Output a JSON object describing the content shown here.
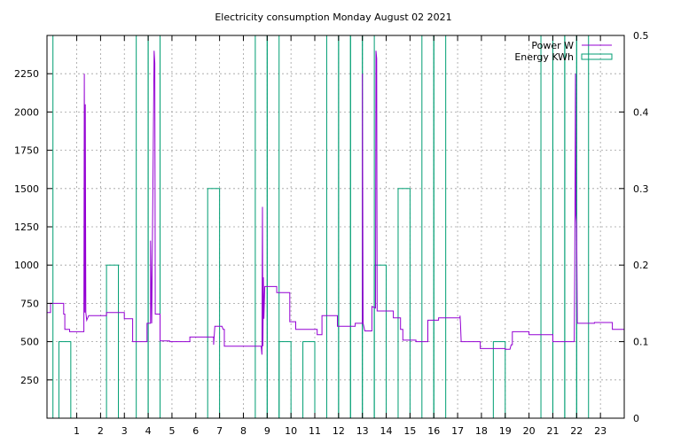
{
  "chart_data": {
    "type": "line",
    "title": "Electricity consumption Monday August 02 2021",
    "xlabel": "",
    "ylabel": "",
    "y2label": "",
    "xlim": [
      -0.25,
      24
    ],
    "ylim": [
      0,
      2500
    ],
    "y2lim": [
      0,
      0.5
    ],
    "x_ticks": [
      1,
      2,
      3,
      4,
      5,
      6,
      7,
      8,
      9,
      10,
      11,
      12,
      13,
      14,
      15,
      16,
      17,
      18,
      19,
      20,
      21,
      22,
      23
    ],
    "y_ticks": [
      250,
      500,
      750,
      1000,
      1250,
      1500,
      1750,
      2000,
      2250
    ],
    "y2_ticks": [
      0,
      0.1,
      0.2,
      0.3,
      0.4,
      0.5
    ],
    "grid": true,
    "legend_position": "top-right",
    "series": [
      {
        "name": "Power W",
        "axis": "y",
        "color": "#9400d3",
        "style": "step",
        "points": [
          [
            -0.25,
            690
          ],
          [
            -0.1,
            690
          ],
          [
            -0.1,
            750
          ],
          [
            0.45,
            750
          ],
          [
            0.45,
            680
          ],
          [
            0.5,
            680
          ],
          [
            0.5,
            580
          ],
          [
            0.7,
            580
          ],
          [
            0.7,
            565
          ],
          [
            1.3,
            565
          ],
          [
            1.3,
            690
          ],
          [
            1.32,
            2250
          ],
          [
            1.34,
            690
          ],
          [
            1.36,
            2050
          ],
          [
            1.38,
            690
          ],
          [
            1.42,
            640
          ],
          [
            1.5,
            670
          ],
          [
            2.25,
            670
          ],
          [
            2.25,
            690
          ],
          [
            3.0,
            690
          ],
          [
            3.0,
            650
          ],
          [
            3.35,
            650
          ],
          [
            3.35,
            500
          ],
          [
            3.95,
            500
          ],
          [
            3.95,
            620
          ],
          [
            4.1,
            620
          ],
          [
            4.1,
            1160
          ],
          [
            4.15,
            620
          ],
          [
            4.25,
            2400
          ],
          [
            4.28,
            2320
          ],
          [
            4.3,
            680
          ],
          [
            4.5,
            680
          ],
          [
            4.5,
            505
          ],
          [
            4.9,
            505
          ],
          [
            4.9,
            500
          ],
          [
            5.75,
            500
          ],
          [
            5.75,
            530
          ],
          [
            6.75,
            530
          ],
          [
            6.75,
            480
          ],
          [
            6.8,
            600
          ],
          [
            7.1,
            600
          ],
          [
            7.15,
            580
          ],
          [
            7.2,
            580
          ],
          [
            7.2,
            470
          ],
          [
            8.75,
            470
          ],
          [
            8.78,
            415
          ],
          [
            8.8,
            1380
          ],
          [
            8.82,
            470
          ],
          [
            8.84,
            920
          ],
          [
            8.86,
            650
          ],
          [
            8.9,
            860
          ],
          [
            9.4,
            860
          ],
          [
            9.4,
            820
          ],
          [
            9.95,
            820
          ],
          [
            9.95,
            630
          ],
          [
            10.2,
            630
          ],
          [
            10.2,
            580
          ],
          [
            11.1,
            580
          ],
          [
            11.1,
            545
          ],
          [
            11.3,
            545
          ],
          [
            11.3,
            670
          ],
          [
            11.95,
            670
          ],
          [
            11.95,
            600
          ],
          [
            12.7,
            600
          ],
          [
            12.7,
            620
          ],
          [
            13.0,
            620
          ],
          [
            13.0,
            2250
          ],
          [
            13.03,
            620
          ],
          [
            13.1,
            570
          ],
          [
            13.4,
            570
          ],
          [
            13.4,
            730
          ],
          [
            13.55,
            720
          ],
          [
            13.57,
            2400
          ],
          [
            13.6,
            2350
          ],
          [
            13.62,
            700
          ],
          [
            14.3,
            700
          ],
          [
            14.3,
            655
          ],
          [
            14.6,
            655
          ],
          [
            14.6,
            580
          ],
          [
            14.7,
            580
          ],
          [
            14.7,
            510
          ],
          [
            15.25,
            510
          ],
          [
            15.25,
            500
          ],
          [
            15.75,
            500
          ],
          [
            15.75,
            640
          ],
          [
            16.2,
            640
          ],
          [
            16.2,
            655
          ],
          [
            17.1,
            655
          ],
          [
            17.1,
            670
          ],
          [
            17.12,
            620
          ],
          [
            17.15,
            500
          ],
          [
            17.95,
            500
          ],
          [
            17.95,
            455
          ],
          [
            19.0,
            455
          ],
          [
            19.0,
            450
          ],
          [
            19.2,
            450
          ],
          [
            19.25,
            480
          ],
          [
            19.3,
            480
          ],
          [
            19.3,
            565
          ],
          [
            20.0,
            565
          ],
          [
            20.0,
            545
          ],
          [
            21.0,
            545
          ],
          [
            21.0,
            500
          ],
          [
            21.9,
            500
          ],
          [
            21.92,
            1000
          ],
          [
            21.95,
            2250
          ],
          [
            21.97,
            1330
          ],
          [
            22.0,
            1260
          ],
          [
            22.03,
            620
          ],
          [
            22.75,
            620
          ],
          [
            22.75,
            625
          ],
          [
            23.5,
            625
          ],
          [
            23.5,
            580
          ],
          [
            24.0,
            580
          ]
        ]
      },
      {
        "name": "Energy KWh",
        "axis": "y2",
        "color": "#009e73",
        "style": "boxes",
        "boxes": [
          [
            -0.25,
            0.5
          ],
          [
            0.5,
            0.1
          ],
          [
            2.5,
            0.2
          ],
          [
            3.75,
            0.5
          ],
          [
            4.25,
            0.5
          ],
          [
            6.75,
            0.3
          ],
          [
            8.75,
            0.5
          ],
          [
            9.25,
            0.5
          ],
          [
            9.75,
            0.1
          ],
          [
            10.75,
            0.1
          ],
          [
            11.75,
            0.5
          ],
          [
            12.25,
            0.5
          ],
          [
            12.75,
            0.5
          ],
          [
            13.25,
            0.5
          ],
          [
            13.75,
            0.2
          ],
          [
            14.75,
            0.3
          ],
          [
            15.75,
            0.5
          ],
          [
            16.25,
            0.5
          ],
          [
            18.75,
            0.1
          ],
          [
            20.75,
            0.5
          ],
          [
            21.25,
            0.5
          ],
          [
            21.75,
            0.5
          ],
          [
            22.25,
            0.5
          ]
        ]
      }
    ]
  }
}
